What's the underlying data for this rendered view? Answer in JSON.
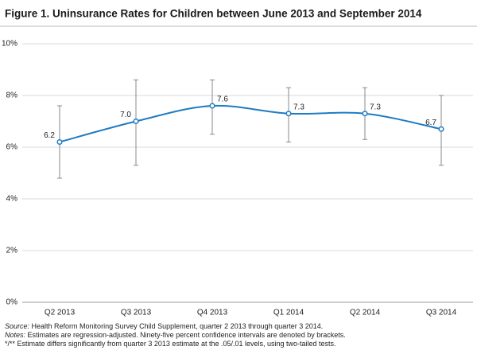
{
  "chart_data": {
    "type": "line",
    "title": "Figure 1. Uninsurance Rates for Children between June 2013 and September 2014",
    "categories": [
      "Q2 2013",
      "Q3 2013",
      "Q4 2013",
      "Q1 2014",
      "Q2 2014",
      "Q3 2014"
    ],
    "values": [
      6.2,
      7.0,
      7.6,
      7.3,
      7.3,
      6.7
    ],
    "value_labels": [
      "6.2",
      "7.0",
      "7.6",
      "7.3",
      "7.3",
      "6.7"
    ],
    "lower": [
      4.8,
      5.3,
      6.5,
      6.2,
      6.3,
      5.3
    ],
    "upper": [
      7.6,
      8.6,
      8.6,
      8.3,
      8.3,
      8.0
    ],
    "color": "#1f7bc1",
    "error_color": "#8a8a8a",
    "ylim": [
      0,
      10
    ],
    "yticks": [
      {
        "value": 0,
        "label": "0%"
      },
      {
        "value": 2,
        "label": "2%"
      },
      {
        "value": 4,
        "label": "4%"
      },
      {
        "value": 6,
        "label": "6%"
      },
      {
        "value": 8,
        "label": "8%"
      },
      {
        "value": 10,
        "label": "10%"
      }
    ],
    "grid": true,
    "footnotes": [
      {
        "label": "Source:",
        "text": " Health Reform Monitoring Survey Child Supplement, quarter 2 2013 through quarter 3 2014."
      },
      {
        "label": "Notes:",
        "text": " Estimates are regression-adjusted. Ninety-five percent confidence intervals are denoted by brackets."
      },
      {
        "text": "*/** Estimate differs significantly from quarter 3 2013 estimate at the .05/.01 levels, using two-tailed tests."
      }
    ]
  }
}
